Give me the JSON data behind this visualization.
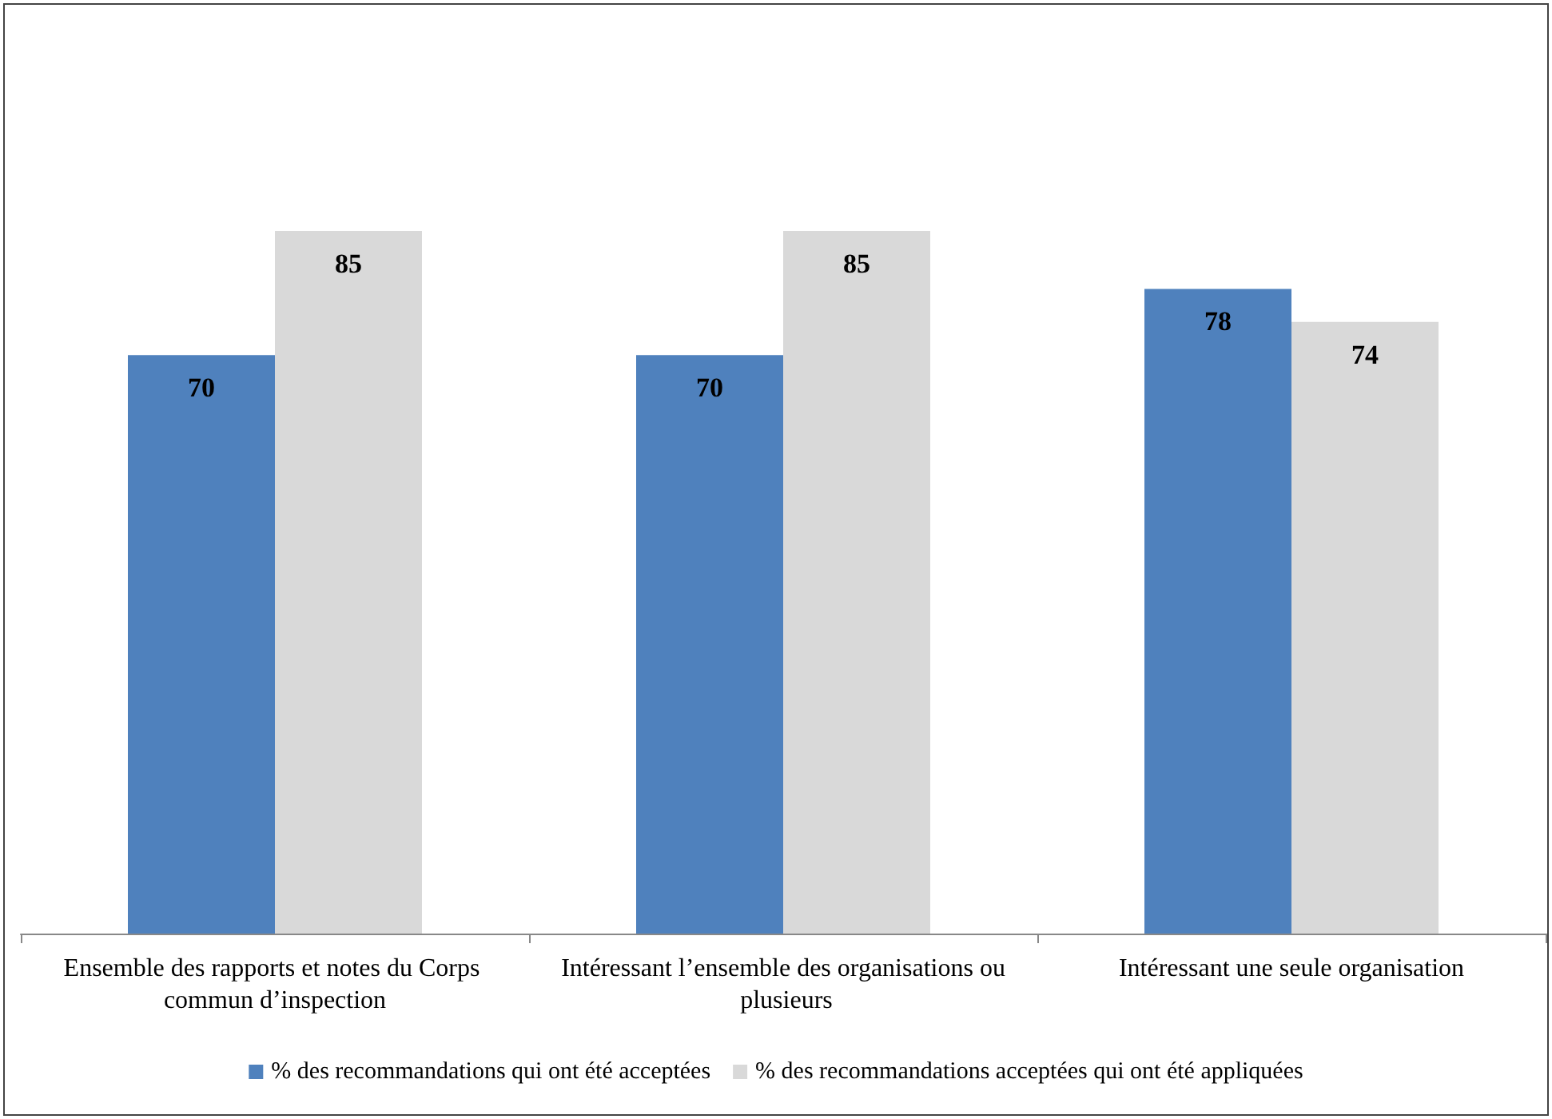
{
  "chart_data": {
    "type": "bar",
    "categories": [
      "Ensemble des rapports et notes du Corps commun d’inspection",
      "Intéressant l’ensemble des organisations ou plusieurs",
      "Intéressant une seule organisation"
    ],
    "series": [
      {
        "name": "% des recommandations qui ont été acceptées",
        "color": "#4f81bd",
        "values": [
          70,
          70,
          78
        ]
      },
      {
        "name": "% des recommandations acceptées qui ont été appliquées",
        "color": "#d9d9d9",
        "values": [
          85,
          85,
          74
        ]
      }
    ],
    "tick_labels": "x",
    "data_labels": true,
    "grid": false,
    "legend": "bottom"
  }
}
